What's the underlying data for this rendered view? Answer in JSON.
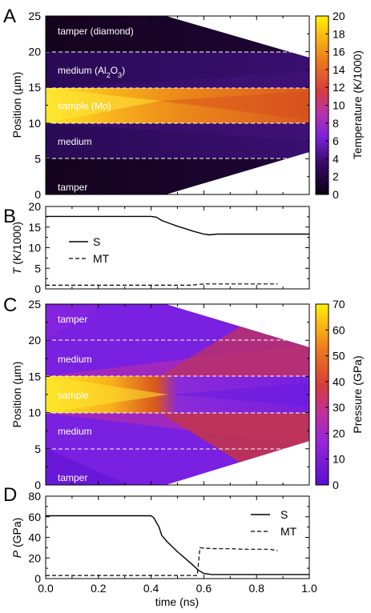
{
  "panels": {
    "a": {
      "letter": "A",
      "ylabel": "Position (µm)",
      "yticks": [
        "0",
        "5",
        "10",
        "15",
        "20",
        "25"
      ],
      "colorbar": {
        "label": "Temperature (K/1000)",
        "ticks": [
          "0",
          "2",
          "4",
          "6",
          "8",
          "10",
          "12",
          "14",
          "16",
          "18",
          "20"
        ],
        "range": [
          0,
          20
        ]
      },
      "regions": [
        {
          "name": "tamper (diamond)",
          "pos": 23
        },
        {
          "name": "medium (Al",
          "sub": "2",
          "mid": "O",
          "sub2": "3",
          "end": ")",
          "pos": 17.5
        },
        {
          "name": "sample (Mo)",
          "pos": 12.5
        },
        {
          "name": "medium",
          "pos": 7.5
        },
        {
          "name": "tamper",
          "pos": 1.1
        }
      ]
    },
    "b": {
      "letter": "B",
      "ylabel_italic": "T",
      "ylabel_rest": " (K/1000)",
      "yticks": [
        "0",
        "5",
        "10",
        "15",
        "20"
      ],
      "legend": {
        "s": "S",
        "mt": "MT"
      }
    },
    "c": {
      "letter": "C",
      "ylabel": "Position (µm)",
      "yticks": [
        "0",
        "5",
        "10",
        "15",
        "20",
        "25"
      ],
      "colorbar": {
        "label": "Pressure (GPa)",
        "ticks": [
          "0",
          "10",
          "20",
          "30",
          "40",
          "50",
          "60",
          "70"
        ],
        "range": [
          0,
          70
        ]
      },
      "regions": [
        {
          "name": "tamper",
          "pos": 23
        },
        {
          "name": "medium",
          "pos": 17.5
        },
        {
          "name": "sample",
          "pos": 12.5
        },
        {
          "name": "medium",
          "pos": 7.5
        },
        {
          "name": "tamper",
          "pos": 1.1
        }
      ]
    },
    "d": {
      "letter": "D",
      "ylabel_italic": "P",
      "ylabel_rest": " (GPa)",
      "yticks": [
        "0",
        "20",
        "40",
        "60",
        "80"
      ],
      "legend": {
        "s": "S",
        "mt": "MT"
      }
    },
    "xlabel": "time (ns)",
    "xticks": [
      "0.0",
      "0.2",
      "0.4",
      "0.6",
      "0.8",
      "1.0"
    ]
  },
  "chart_data": [
    {
      "type": "heatmap",
      "panel": "A",
      "xlabel": "time (ns)",
      "ylabel": "Position (µm)",
      "xlim": [
        0,
        1.0
      ],
      "ylim": [
        0,
        25
      ],
      "colorbar_label": "Temperature (K/1000)",
      "colorbar_range": [
        0,
        20
      ],
      "layer_boundaries_um": [
        5,
        10,
        15,
        20
      ],
      "upper_edge": [
        [
          0,
          25
        ],
        [
          0.45,
          25
        ],
        [
          1.0,
          19.2
        ]
      ],
      "lower_edge": [
        [
          0,
          0
        ],
        [
          0.45,
          0
        ],
        [
          1.0,
          6.0
        ]
      ],
      "regions": [
        "tamper (diamond)",
        "medium (Al2O3)",
        "sample (Mo)",
        "medium",
        "tamper"
      ]
    },
    {
      "type": "line",
      "panel": "B",
      "xlabel": "time (ns)",
      "ylabel": "T (K/1000)",
      "xlim": [
        0,
        1.0
      ],
      "ylim": [
        0,
        20
      ],
      "series": [
        {
          "name": "S",
          "style": "solid",
          "x": [
            0,
            0.1,
            0.2,
            0.3,
            0.4,
            0.42,
            0.44,
            0.47,
            0.5,
            0.53,
            0.56,
            0.6,
            0.62,
            0.65,
            0.7,
            0.8,
            0.9,
            1.0
          ],
          "y": [
            17.6,
            17.6,
            17.6,
            17.6,
            17.6,
            17.4,
            16.6,
            15.9,
            15.2,
            14.6,
            14.0,
            13.3,
            13.1,
            13.3,
            13.3,
            13.3,
            13.3,
            13.3
          ]
        },
        {
          "name": "MT",
          "style": "dashed",
          "x": [
            0,
            0.2,
            0.4,
            0.55,
            0.6,
            0.7,
            0.8,
            0.88
          ],
          "y": [
            0.9,
            0.9,
            0.9,
            0.9,
            1.2,
            1.2,
            1.2,
            1.2
          ]
        }
      ]
    },
    {
      "type": "heatmap",
      "panel": "C",
      "xlabel": "time (ns)",
      "ylabel": "Position (µm)",
      "xlim": [
        0,
        1.0
      ],
      "ylim": [
        0,
        25
      ],
      "colorbar_label": "Pressure (GPa)",
      "colorbar_range": [
        0,
        70
      ],
      "layer_boundaries_um": [
        5,
        10,
        15,
        20
      ],
      "upper_edge": [
        [
          0,
          25
        ],
        [
          0.45,
          25
        ],
        [
          1.0,
          19.2
        ]
      ],
      "lower_edge": [
        [
          0,
          0
        ],
        [
          0.45,
          0
        ],
        [
          1.0,
          6.0
        ]
      ],
      "regions": [
        "tamper",
        "medium",
        "sample",
        "medium",
        "tamper"
      ]
    },
    {
      "type": "line",
      "panel": "D",
      "xlabel": "time (ns)",
      "ylabel": "P (GPa)",
      "xlim": [
        0,
        1.0
      ],
      "ylim": [
        0,
        80
      ],
      "series": [
        {
          "name": "S",
          "style": "solid",
          "x": [
            0,
            0.1,
            0.2,
            0.3,
            0.4,
            0.41,
            0.43,
            0.44,
            0.46,
            0.5,
            0.55,
            0.58,
            0.6,
            0.63,
            0.7,
            0.8,
            0.9,
            1.0
          ],
          "y": [
            61,
            61,
            61,
            61,
            61,
            59,
            50,
            42,
            36,
            26,
            15,
            8,
            5,
            4,
            4,
            4,
            4,
            4
          ]
        },
        {
          "name": "MT",
          "style": "dashed",
          "x": [
            0,
            0.2,
            0.4,
            0.55,
            0.575,
            0.585,
            0.6,
            0.65,
            0.7,
            0.75,
            0.8,
            0.85,
            0.88
          ],
          "y": [
            3,
            3,
            3,
            3,
            3,
            30,
            29.5,
            29,
            29,
            28.5,
            28.5,
            28.5,
            27
          ]
        }
      ]
    }
  ]
}
